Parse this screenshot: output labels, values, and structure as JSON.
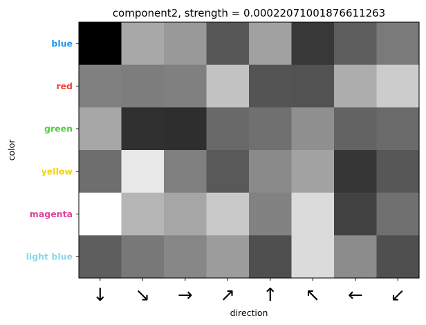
{
  "chart_data": {
    "type": "heatmap",
    "title": "component2, strength = 0.00022071001876611263",
    "xlabel": "direction",
    "ylabel": "color",
    "x_categories": [
      "↓",
      "↘",
      "→",
      "↗",
      "↑",
      "↖",
      "←",
      "↙"
    ],
    "y_categories": [
      {
        "label": "blue",
        "color": "#2196f3"
      },
      {
        "label": "red",
        "color": "#f44336"
      },
      {
        "label": "green",
        "color": "#4cd137"
      },
      {
        "label": "yellow",
        "color": "#f5d20a"
      },
      {
        "label": "magenta",
        "color": "#e040a0"
      },
      {
        "label": "light blue",
        "color": "#87d8ec"
      }
    ],
    "colormap": "gray",
    "values": [
      [
        0.0,
        0.66,
        0.6,
        0.34,
        0.63,
        0.22,
        0.37,
        0.48
      ],
      [
        0.5,
        0.49,
        0.5,
        0.76,
        0.33,
        0.32,
        0.68,
        0.8
      ],
      [
        0.65,
        0.19,
        0.18,
        0.41,
        0.44,
        0.56,
        0.39,
        0.42
      ],
      [
        0.43,
        0.91,
        0.5,
        0.35,
        0.54,
        0.64,
        0.21,
        0.34
      ],
      [
        1.0,
        0.71,
        0.65,
        0.79,
        0.51,
        0.86,
        0.26,
        0.44
      ],
      [
        0.37,
        0.47,
        0.53,
        0.61,
        0.31,
        0.86,
        0.55,
        0.31
      ]
    ]
  }
}
